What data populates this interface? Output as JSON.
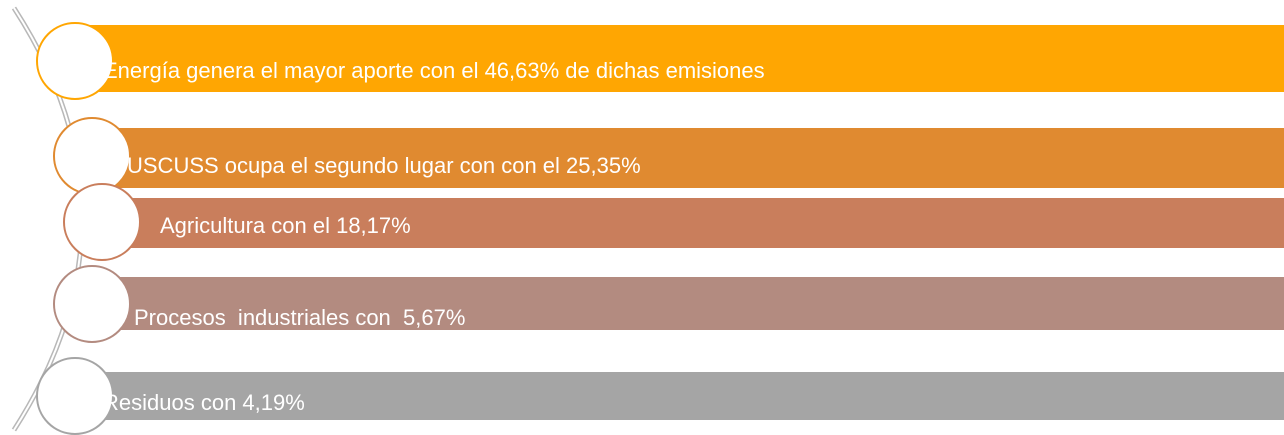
{
  "items": [
    {
      "text": "Energía genera el mayor aporte con el 46,63% de dichas emisiones"
    },
    {
      "text": "USCUSS ocupa el segundo lugar con con el 25,35%"
    },
    {
      "text": "Agricultura con el 18,17%"
    },
    {
      "text": "Procesos  industriales con  5,67%"
    },
    {
      "text": "Residuos con 4,19%"
    }
  ]
}
